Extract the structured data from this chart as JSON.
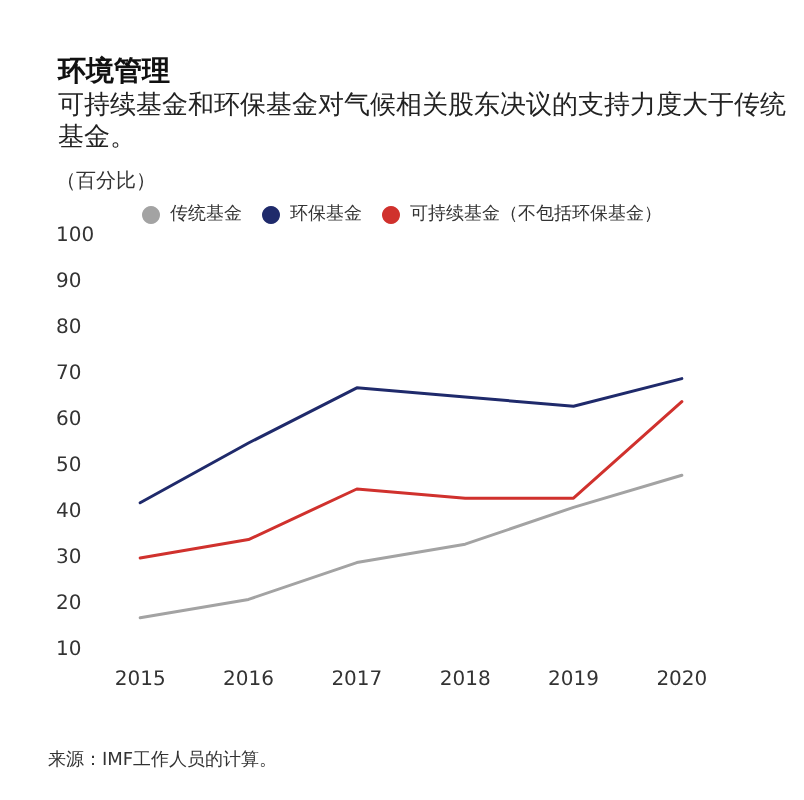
{
  "chart_data": {
    "type": "line",
    "title": "环境管理",
    "subtitle": "可持续基金和环保基金对气候相关股东决议的支持力度大于传统基金。",
    "ylabel": "（百分比）",
    "categories": [
      "2015",
      "2016",
      "2017",
      "2018",
      "2019",
      "2020"
    ],
    "series": [
      {
        "name": "传统基金",
        "color": "#a3a3a3",
        "values": [
          17,
          21,
          29,
          33,
          41,
          48
        ]
      },
      {
        "name": "环保基金",
        "color": "#1f2a6b",
        "values": [
          42,
          55,
          67,
          65,
          63,
          69
        ]
      },
      {
        "name": "可持续基金（不包括环保基金）",
        "color": "#d0312d",
        "values": [
          30,
          34,
          45,
          43,
          43,
          64
        ]
      }
    ],
    "ylim": [
      10,
      100
    ],
    "yticks": [
      10,
      20,
      30,
      40,
      50,
      60,
      70,
      80,
      90,
      100
    ],
    "grid": false,
    "legend": "top",
    "marker": "none",
    "line_style": "solid",
    "annotations": [
      "来源：IMF工作人员的计算。"
    ]
  }
}
